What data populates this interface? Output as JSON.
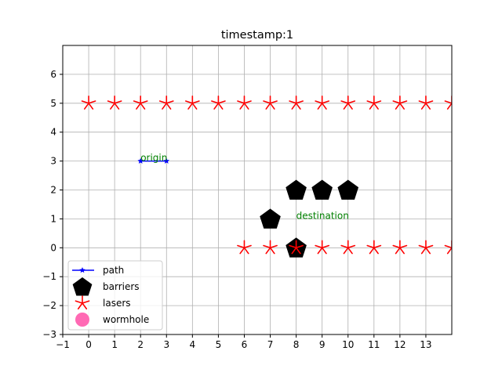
{
  "chart_data": {
    "type": "scatter",
    "title": "timestamp:1",
    "xlim": [
      -1,
      14
    ],
    "ylim": [
      -3,
      7
    ],
    "xticks": [
      -1,
      0,
      1,
      2,
      3,
      4,
      5,
      6,
      7,
      8,
      9,
      10,
      11,
      12,
      13
    ],
    "yticks": [
      -3,
      -2,
      -1,
      0,
      1,
      2,
      3,
      4,
      5,
      6
    ],
    "grid": true,
    "legend_position": "lower-left",
    "series": [
      {
        "name": "path",
        "kind": "line",
        "marker": "star",
        "color": "#0000ff",
        "points": [
          [
            2,
            3
          ],
          [
            3,
            3
          ]
        ]
      },
      {
        "name": "barriers",
        "kind": "scatter",
        "marker": "pentagon",
        "color": "#000000",
        "points": [
          [
            7,
            1
          ],
          [
            8,
            2
          ],
          [
            9,
            2
          ],
          [
            10,
            2
          ],
          [
            8,
            0
          ]
        ]
      },
      {
        "name": "lasers",
        "kind": "scatter",
        "marker": "asterisk",
        "color": "#ff0000",
        "points": [
          [
            0,
            5
          ],
          [
            1,
            5
          ],
          [
            2,
            5
          ],
          [
            3,
            5
          ],
          [
            4,
            5
          ],
          [
            5,
            5
          ],
          [
            6,
            5
          ],
          [
            7,
            5
          ],
          [
            8,
            5
          ],
          [
            9,
            5
          ],
          [
            10,
            5
          ],
          [
            11,
            5
          ],
          [
            12,
            5
          ],
          [
            13,
            5
          ],
          [
            14,
            5
          ],
          [
            6,
            0
          ],
          [
            7,
            0
          ],
          [
            8,
            0
          ],
          [
            9,
            0
          ],
          [
            10,
            0
          ],
          [
            11,
            0
          ],
          [
            12,
            0
          ],
          [
            13,
            0
          ],
          [
            14,
            0
          ]
        ]
      },
      {
        "name": "wormhole",
        "kind": "scatter",
        "marker": "circle",
        "color": "#ff69b4",
        "points": []
      }
    ],
    "annotations": [
      {
        "text": "origin",
        "x": 2,
        "y": 3,
        "color": "#008000"
      },
      {
        "text": "destination",
        "x": 8,
        "y": 1,
        "color": "#008000"
      }
    ]
  }
}
